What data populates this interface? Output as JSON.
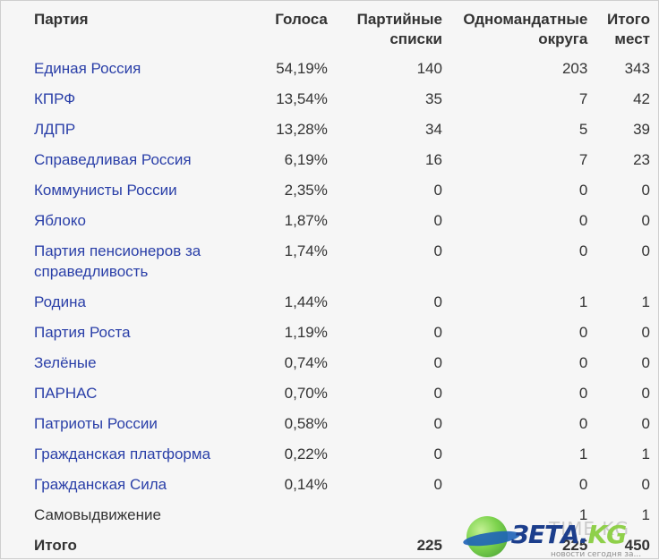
{
  "table": {
    "headers": {
      "party": "Партия",
      "votes": "Голоса",
      "lists_line1": "Партийные",
      "lists_line2": "списки",
      "single_line1": "Одномандатные",
      "single_line2": "округа",
      "total_line1": "Итого",
      "total_line2": "мест"
    },
    "rows": [
      {
        "party": "Единая Россия",
        "votes": "54,19%",
        "lists": "140",
        "single": "203",
        "total": "343",
        "link": true
      },
      {
        "party": "КПРФ",
        "votes": "13,54%",
        "lists": "35",
        "single": "7",
        "total": "42",
        "link": true
      },
      {
        "party": "ЛДПР",
        "votes": "13,28%",
        "lists": "34",
        "single": "5",
        "total": "39",
        "link": true
      },
      {
        "party": "Справедливая Россия",
        "votes": "6,19%",
        "lists": "16",
        "single": "7",
        "total": "23",
        "link": true
      },
      {
        "party": "Коммунисты России",
        "votes": "2,35%",
        "lists": "0",
        "single": "0",
        "total": "0",
        "link": true
      },
      {
        "party": "Яблоко",
        "votes": "1,87%",
        "lists": "0",
        "single": "0",
        "total": "0",
        "link": true
      },
      {
        "party": "Партия пенсионеров за справедливость",
        "votes": "1,74%",
        "lists": "0",
        "single": "0",
        "total": "0",
        "link": true
      },
      {
        "party": "Родина",
        "votes": "1,44%",
        "lists": "0",
        "single": "1",
        "total": "1",
        "link": true
      },
      {
        "party": "Партия Роста",
        "votes": "1,19%",
        "lists": "0",
        "single": "0",
        "total": "0",
        "link": true
      },
      {
        "party": "Зелёные",
        "votes": "0,74%",
        "lists": "0",
        "single": "0",
        "total": "0",
        "link": true
      },
      {
        "party": "ПАРНАС",
        "votes": "0,70%",
        "lists": "0",
        "single": "0",
        "total": "0",
        "link": true
      },
      {
        "party": "Патриоты России",
        "votes": "0,58%",
        "lists": "0",
        "single": "0",
        "total": "0",
        "link": true
      },
      {
        "party": "Гражданская платформа",
        "votes": "0,22%",
        "lists": "0",
        "single": "1",
        "total": "1",
        "link": true
      },
      {
        "party": "Гражданская Сила",
        "votes": "0,14%",
        "lists": "0",
        "single": "0",
        "total": "0",
        "link": true
      },
      {
        "party": "Самовыдвижение",
        "votes": "",
        "lists": "",
        "single": "1",
        "total": "1",
        "link": false
      }
    ],
    "totals": {
      "label": "Итого",
      "votes": "",
      "lists": "225",
      "single": "225",
      "total": "450"
    }
  },
  "watermark": {
    "brand": "ЗЕТА",
    "dot": ".",
    "tld": "KG",
    "ghost": "TIME.KG",
    "tagline": "новости сегодня за..."
  },
  "colors": {
    "link": "#2a3fa8",
    "text": "#333333",
    "background": "#f6f6f6",
    "brand_blue": "#1c3e8c",
    "brand_green": "#8fd04a"
  }
}
